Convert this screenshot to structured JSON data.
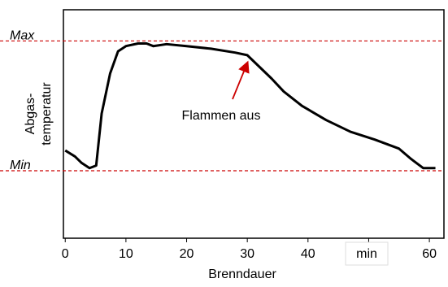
{
  "chart_data": {
    "type": "line",
    "xlabel": "Brenndauer",
    "ylabel": [
      "Abgas-",
      "temperatur"
    ],
    "x_unit": "min",
    "x": [
      0,
      1.6,
      2.7,
      4,
      5.1,
      6,
      7.4,
      8.7,
      10,
      12,
      13.4,
      14.5,
      16.7,
      20,
      24,
      28,
      30,
      32,
      34,
      36,
      39,
      43,
      47,
      51,
      55,
      57,
      59,
      61
    ],
    "series": [
      {
        "name": "Abgastemperatur",
        "color": "#000000",
        "values": [
          15.6,
          11,
          6,
          2,
          4,
          44,
          75,
          92,
          96,
          98,
          98,
          96,
          97.5,
          96,
          94,
          91,
          89,
          80,
          71,
          61,
          50,
          39,
          30,
          24,
          17,
          9,
          2,
          2
        ]
      }
    ],
    "xlim": [
      -0.3,
      62.4
    ],
    "xticks": [
      0,
      10,
      20,
      30,
      40,
      50,
      60
    ],
    "ylim": [
      -52,
      124
    ],
    "yticks": [
      {
        "value": 100,
        "label": "Max"
      },
      {
        "value": 0,
        "label": "Min"
      }
    ],
    "reference_line_color": "#cc0000",
    "annotation": {
      "text": "Flammen aus",
      "color": "#cc0000"
    }
  }
}
